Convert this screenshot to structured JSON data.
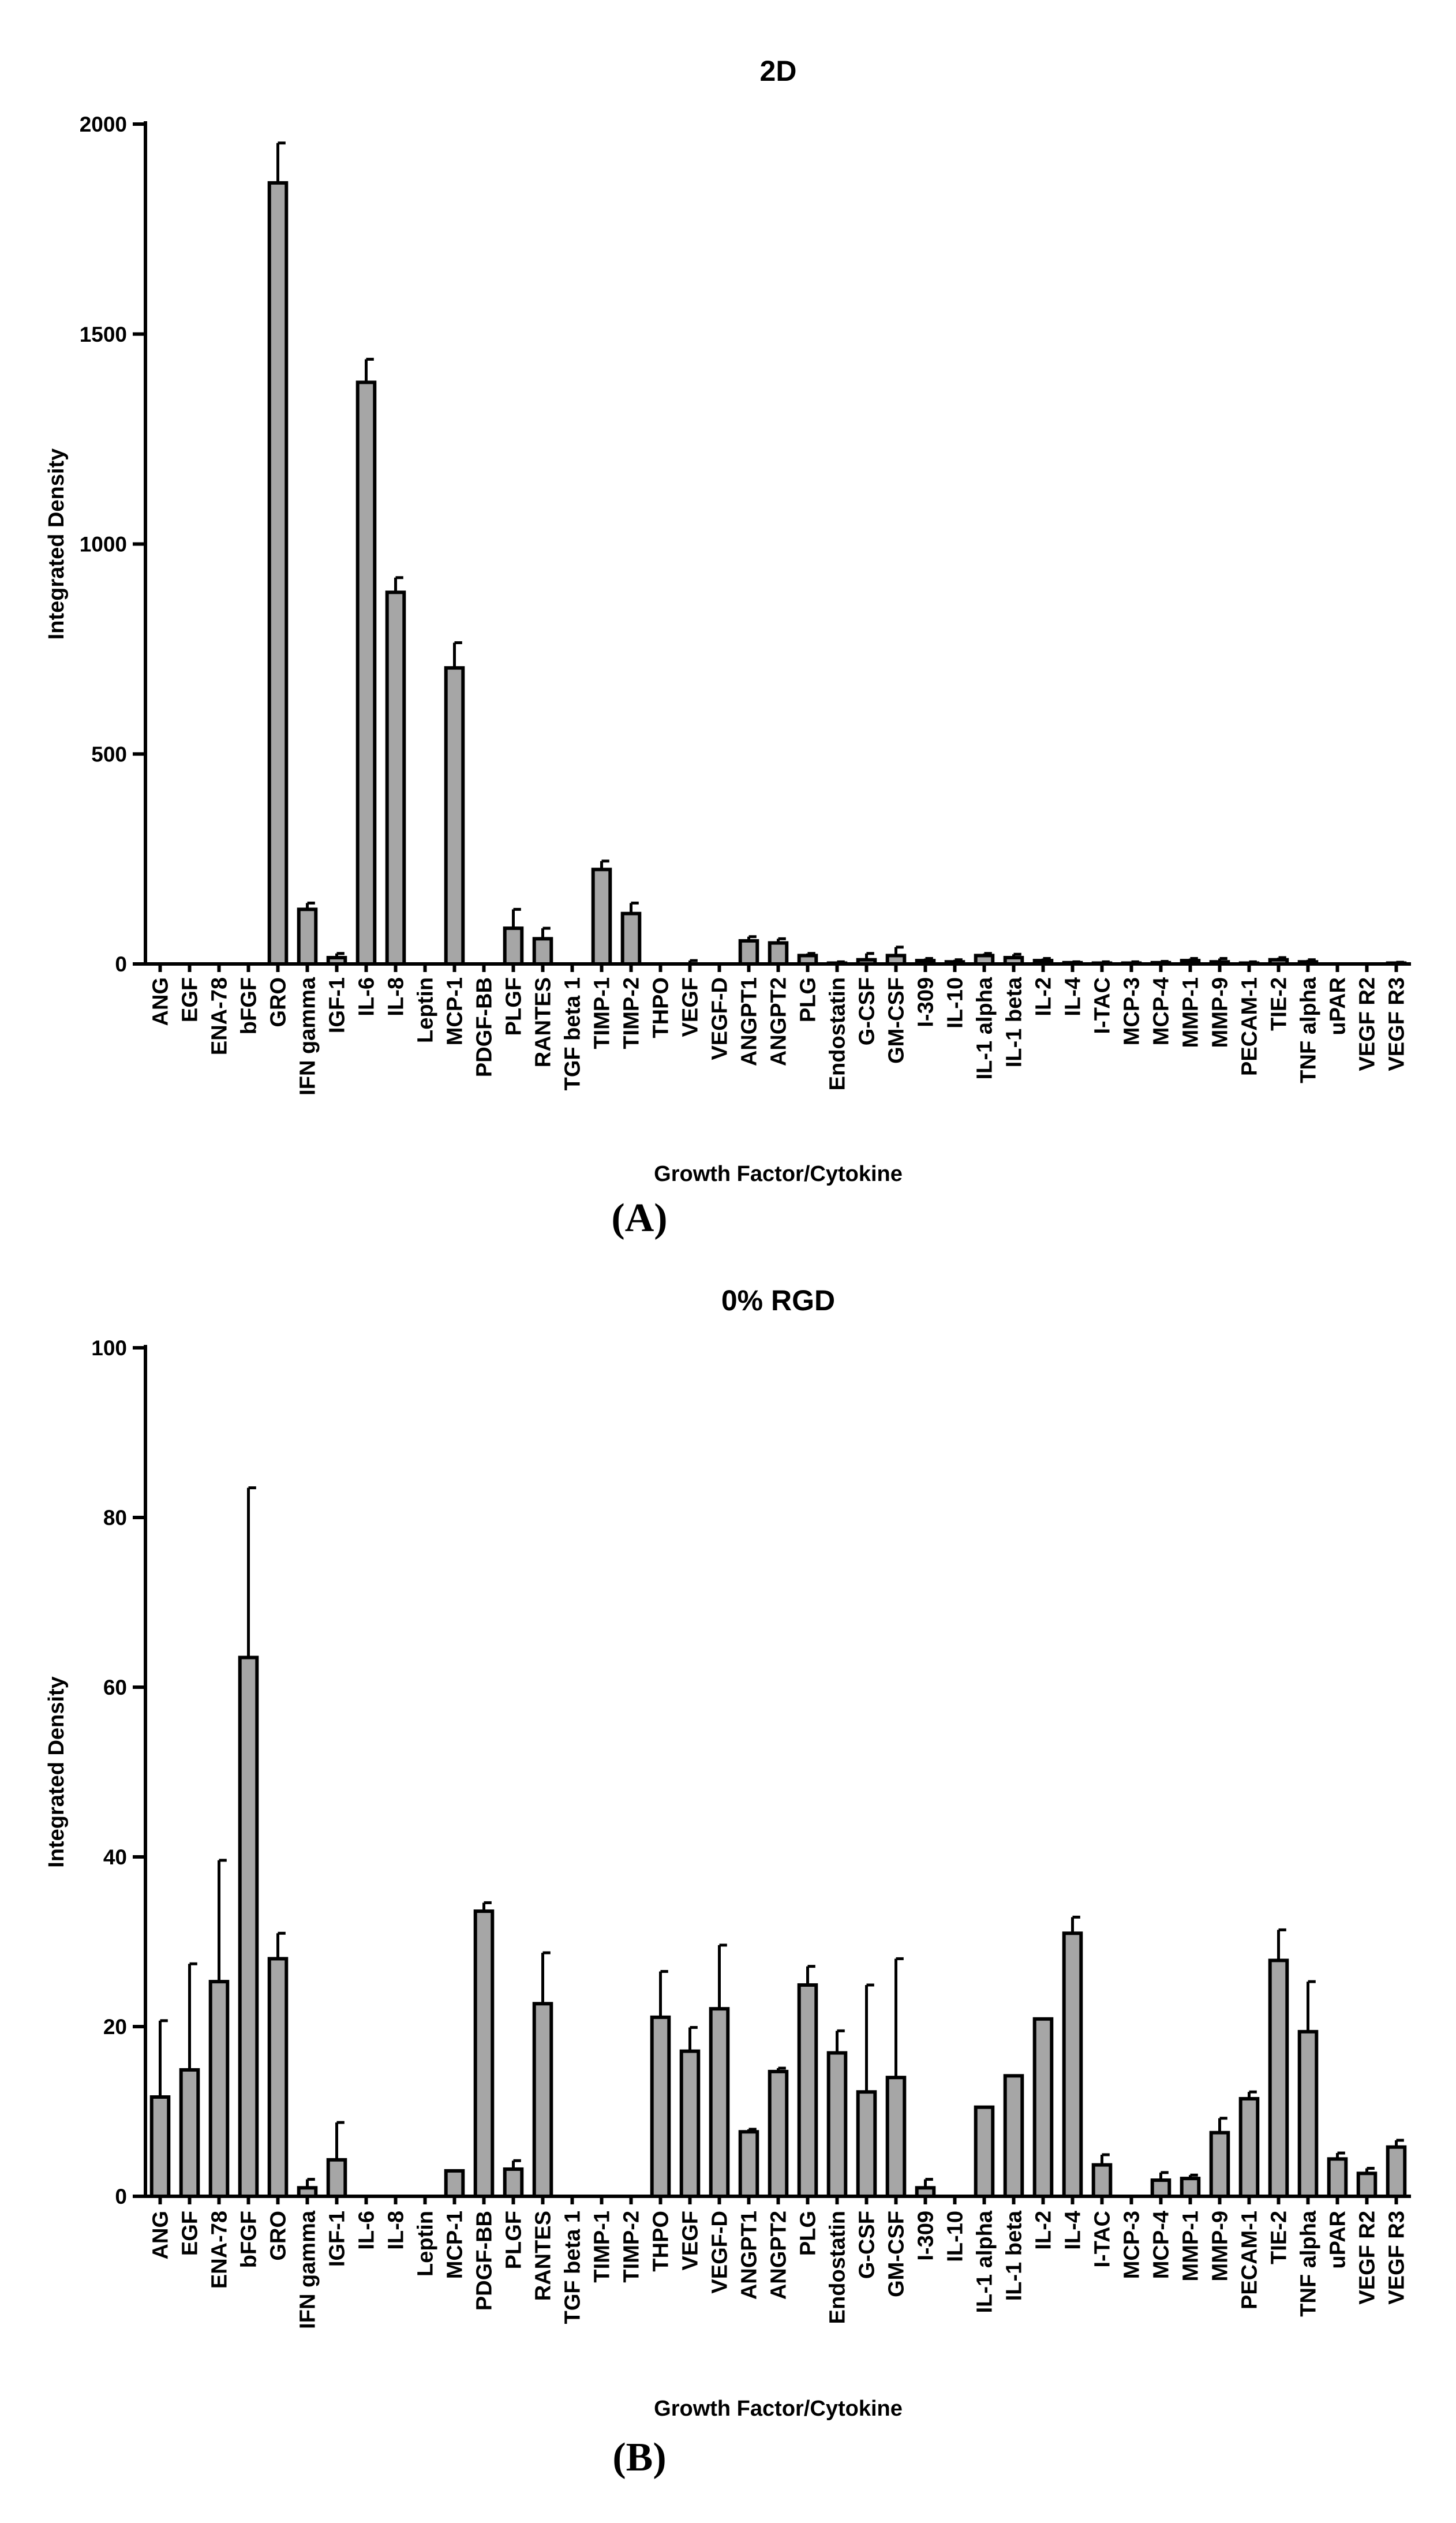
{
  "chart_data": [
    {
      "type": "bar",
      "panel_label": "(A)",
      "title": "2D",
      "xlabel": "Growth Factor/Cytokine",
      "ylabel": "Integrated Density",
      "ylim": [
        0,
        2000
      ],
      "yticks": [
        "0",
        "500",
        "1000",
        "1500",
        "2000"
      ],
      "grid": false,
      "categories": [
        "ANG",
        "EGF",
        "ENA-78",
        "bFGF",
        "GRO",
        "IFN gamma",
        "IGF-1",
        "IL-6",
        "IL-8",
        "Leptin",
        "MCP-1",
        "PDGF-BB",
        "PLGF",
        "RANTES",
        "TGF beta 1",
        "TIMP-1",
        "TIMP-2",
        "THPO",
        "VEGF",
        "VEGF-D",
        "ANGPT1",
        "ANGPT2",
        "PLG",
        "Endostatin",
        "G-CSF",
        "GM-CSF",
        "I-309",
        "IL-10",
        "IL-1 alpha",
        "IL-1 beta",
        "IL-2",
        "IL-4",
        "I-TAC",
        "MCP-3",
        "MCP-4",
        "MMP-1",
        "MMP-9",
        "PECAM-1",
        "TIE-2",
        "TNF alpha",
        "uPAR",
        "VEGF R2",
        "VEGF R3"
      ],
      "values": [
        0,
        0,
        0,
        0,
        1860,
        130,
        15,
        1385,
        885,
        0,
        705,
        0,
        85,
        60,
        0,
        225,
        120,
        0,
        0,
        0,
        55,
        50,
        20,
        2,
        10,
        20,
        8,
        5,
        20,
        15,
        8,
        3,
        2,
        2,
        3,
        8,
        5,
        2,
        10,
        5,
        0,
        0,
        2
      ],
      "errors": [
        0,
        0,
        0,
        0,
        95,
        15,
        10,
        55,
        35,
        0,
        60,
        0,
        45,
        25,
        0,
        20,
        25,
        0,
        8,
        0,
        10,
        10,
        5,
        3,
        15,
        20,
        5,
        5,
        5,
        8,
        5,
        2,
        3,
        3,
        3,
        5,
        8,
        3,
        5,
        5,
        0,
        0,
        2
      ]
    },
    {
      "type": "bar",
      "panel_label": "(B)",
      "title": "0% RGD",
      "xlabel": "Growth Factor/Cytokine",
      "ylabel": "Integrated Density",
      "ylim": [
        0,
        100
      ],
      "yticks": [
        "0",
        "20",
        "40",
        "60",
        "80",
        "100"
      ],
      "grid": false,
      "categories": [
        "ANG",
        "EGF",
        "ENA-78",
        "bFGF",
        "GRO",
        "IFN gamma",
        "IGF-1",
        "IL-6",
        "IL-8",
        "Leptin",
        "MCP-1",
        "PDGF-BB",
        "PLGF",
        "RANTES",
        "TGF beta 1",
        "TIMP-1",
        "TIMP-2",
        "THPO",
        "VEGF",
        "VEGF-D",
        "ANGPT1",
        "ANGPT2",
        "PLG",
        "Endostatin",
        "G-CSF",
        "GM-CSF",
        "I-309",
        "IL-10",
        "IL-1 alpha",
        "IL-1 beta",
        "IL-2",
        "IL-4",
        "I-TAC",
        "MCP-3",
        "MCP-4",
        "MMP-1",
        "MMP-9",
        "PECAM-1",
        "TIE-2",
        "TNF alpha",
        "uPAR",
        "VEGF R2",
        "VEGF R3"
      ],
      "values": [
        11.7,
        14.9,
        25.3,
        63.5,
        28,
        1,
        4.3,
        0,
        0,
        0,
        3,
        33.6,
        3.2,
        22.7,
        0,
        0,
        0,
        21.1,
        17.1,
        22.1,
        7.6,
        14.7,
        24.9,
        16.9,
        12.3,
        14,
        1,
        0,
        10.5,
        14.2,
        20.9,
        31,
        3.7,
        0,
        1.9,
        2.1,
        7.5,
        11.5,
        27.8,
        19.4,
        4.4,
        2.7,
        5.8
      ],
      "errors": [
        9,
        12.5,
        14.3,
        20,
        3,
        1,
        4.4,
        0,
        0,
        0,
        0,
        1,
        1,
        6,
        0,
        0,
        0,
        5.4,
        2.8,
        7.5,
        0.3,
        0.4,
        2.2,
        2.6,
        12.6,
        14,
        1,
        0,
        0,
        0,
        0,
        1.9,
        1.2,
        0,
        0.9,
        0.4,
        1.7,
        0.8,
        3.6,
        5.9,
        0.7,
        0.6,
        0.8
      ]
    }
  ]
}
